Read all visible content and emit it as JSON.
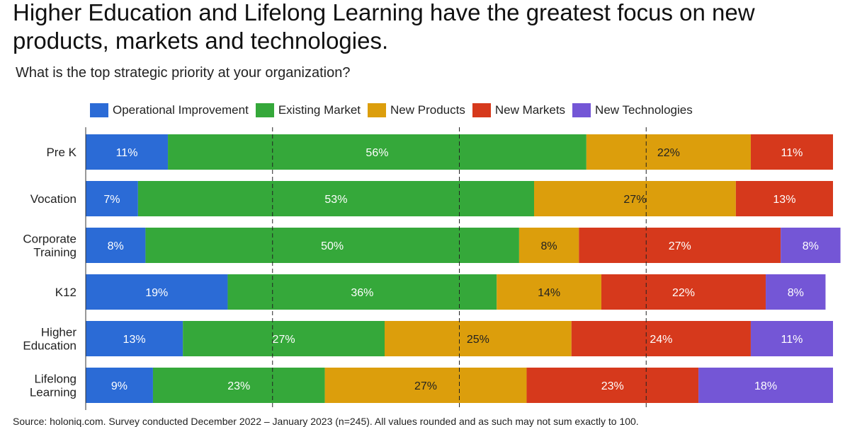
{
  "title": "Higher Education and Lifelong Learning have the greatest focus on new products, markets and technologies.",
  "subtitle": "What is the top strategic priority at your organization?",
  "source": "Source: holoniq.com. Survey conducted December 2022 – January 2023 (n=245). All values rounded and as such may not sum exactly to 100.",
  "chart_data": {
    "type": "bar",
    "orientation": "horizontal",
    "stacked": true,
    "title": "Higher Education and Lifelong Learning have the greatest focus on new products, markets and technologies.",
    "subtitle": "What is the top strategic priority at your organization?",
    "xlim": [
      0,
      100
    ],
    "grid": "dashed vertical lines at 25, 50, 75",
    "legend_position": "top",
    "categories": [
      {
        "label": "Pre K",
        "lines": [
          "Pre K"
        ]
      },
      {
        "label": "Vocation",
        "lines": [
          "Vocation"
        ]
      },
      {
        "label": "Corporate Training",
        "lines": [
          "Corporate",
          "Training"
        ]
      },
      {
        "label": "K12",
        "lines": [
          "K12"
        ]
      },
      {
        "label": "Higher Education",
        "lines": [
          "Higher",
          "Education"
        ]
      },
      {
        "label": "Lifelong Learning",
        "lines": [
          "Lifelong",
          "Learning"
        ]
      }
    ],
    "series": [
      {
        "name": "Operational Improvement",
        "color": "#2b6bd6",
        "label_color": "#ffffff",
        "values": [
          11,
          7,
          8,
          19,
          13,
          9
        ]
      },
      {
        "name": "Existing Market",
        "color": "#35a83a",
        "label_color": "#ffffff",
        "values": [
          56,
          53,
          50,
          36,
          27,
          23
        ]
      },
      {
        "name": "New Products",
        "color": "#dc9e0c",
        "label_color": "#222222",
        "values": [
          22,
          27,
          8,
          14,
          25,
          27
        ]
      },
      {
        "name": "New Markets",
        "color": "#d6391c",
        "label_color": "#ffffff",
        "values": [
          11,
          13,
          27,
          22,
          24,
          23
        ]
      },
      {
        "name": "New Technologies",
        "color": "#7456d6",
        "label_color": "#ffffff",
        "values": [
          0,
          0,
          8,
          8,
          11,
          18
        ]
      }
    ]
  }
}
